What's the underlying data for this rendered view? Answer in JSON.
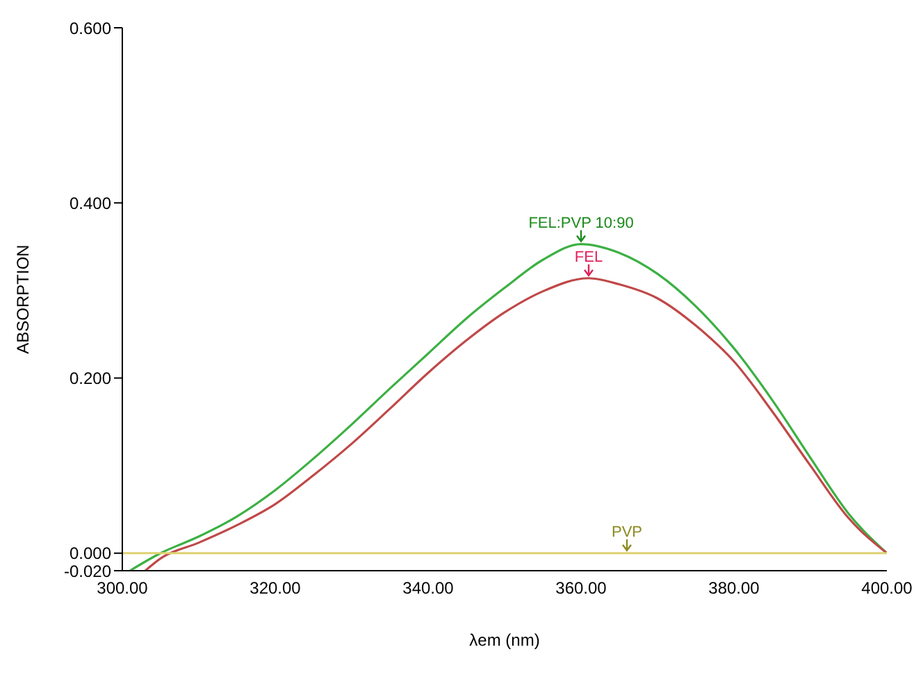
{
  "chart_data": {
    "type": "line",
    "xlabel": "λem (nm)",
    "ylabel": "ABSORPTION",
    "xlim": [
      300,
      400
    ],
    "xticks": [
      {
        "value": 300,
        "label": "300.00"
      },
      {
        "value": 320,
        "label": "320.00"
      },
      {
        "value": 340,
        "label": "340.00"
      },
      {
        "value": 360,
        "label": "360.00"
      },
      {
        "value": 380,
        "label": "380.00"
      },
      {
        "value": 400,
        "label": "400.00"
      }
    ],
    "ylim": [
      -0.02,
      0.6
    ],
    "yticks": [
      {
        "value": -0.02,
        "label": "-0.020"
      },
      {
        "value": 0,
        "label": "0.000"
      },
      {
        "value": 0.2,
        "label": "0.200"
      },
      {
        "value": 0.4,
        "label": "0.400"
      },
      {
        "value": 0.6,
        "label": "0.600"
      }
    ],
    "grid": false,
    "legend": false,
    "marker": "none",
    "series": [
      {
        "color": "#3cb043",
        "x": [
          301,
          305,
          310,
          315,
          320,
          325,
          330,
          335,
          340,
          345,
          350,
          355,
          360,
          365,
          370,
          375,
          380,
          385,
          390,
          395,
          400
        ],
        "values": [
          -0.02,
          0.0,
          0.019,
          0.042,
          0.072,
          0.108,
          0.147,
          0.188,
          0.228,
          0.268,
          0.303,
          0.335,
          0.353,
          0.343,
          0.319,
          0.282,
          0.234,
          0.175,
          0.109,
          0.045,
          0.0
        ]
      },
      {
        "color": "#c04848",
        "x": [
          303,
          305,
          310,
          315,
          320,
          325,
          330,
          335,
          340,
          345,
          350,
          355,
          361,
          365,
          370,
          375,
          380,
          385,
          390,
          395,
          400
        ],
        "values": [
          -0.02,
          -0.006,
          0.012,
          0.032,
          0.056,
          0.089,
          0.125,
          0.165,
          0.206,
          0.243,
          0.275,
          0.299,
          0.314,
          0.307,
          0.291,
          0.26,
          0.219,
          0.162,
          0.1,
          0.04,
          0.0
        ]
      },
      {
        "color": "#ddd272",
        "x": [
          300,
          400
        ],
        "values": [
          0.0,
          0.0
        ]
      }
    ],
    "annotations": [
      {
        "text": "FEL:PVP 10:90",
        "x": 360,
        "y": 0.353
      },
      {
        "text": "FEL",
        "x": 361,
        "y": 0.314
      },
      {
        "text": "PVP",
        "x": 366,
        "y": 0.0
      }
    ]
  }
}
